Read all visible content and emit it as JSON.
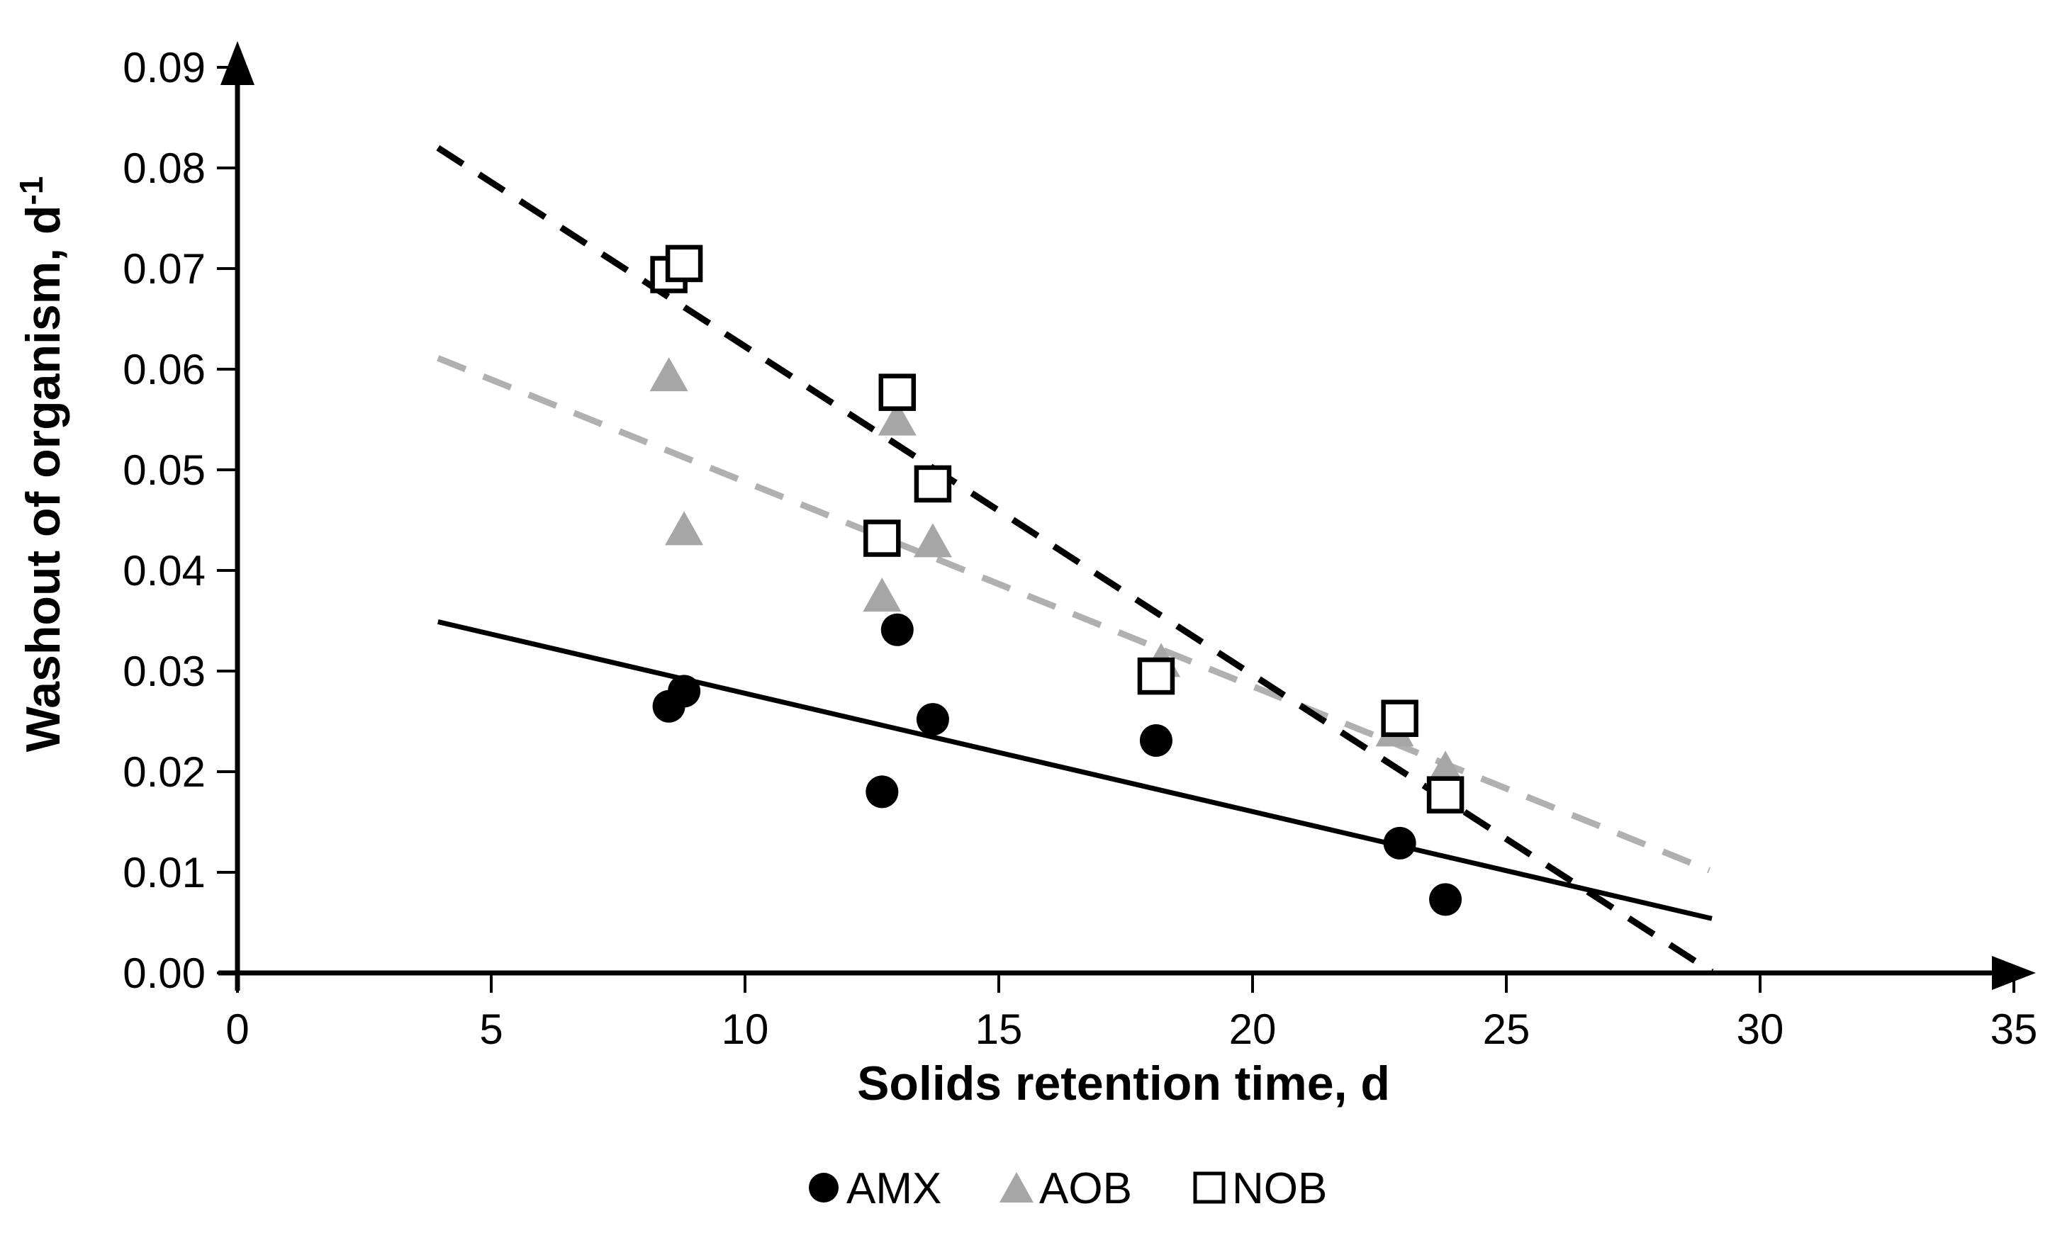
{
  "figure": {
    "background": "#ffffff",
    "axis_color": "#000000"
  },
  "chart_data": {
    "type": "scatter",
    "title": "",
    "xlabel": "Solids retention time, d",
    "ylabel": "Washout of organism, d",
    "ylabel_superscript": "-1",
    "xlim": [
      0,
      35
    ],
    "ylim": [
      0.0,
      0.09
    ],
    "x_ticks": [
      0,
      5,
      10,
      15,
      20,
      25,
      30,
      35
    ],
    "y_tick_labels": [
      "0.00",
      "0.01",
      "0.02",
      "0.03",
      "0.04",
      "0.05",
      "0.06",
      "0.07",
      "0.08",
      "0.09"
    ],
    "grid": false,
    "legend_position": "bottom-center",
    "series": [
      {
        "name": "AMX",
        "marker": "circle",
        "marker_fill": "#000000",
        "marker_stroke": "#000000",
        "points": [
          [
            8.5,
            0.0265
          ],
          [
            8.8,
            0.028
          ],
          [
            12.7,
            0.018
          ],
          [
            13.0,
            0.0341
          ],
          [
            13.7,
            0.0252
          ],
          [
            18.1,
            0.0231
          ],
          [
            22.9,
            0.0129
          ],
          [
            23.8,
            0.0073
          ]
        ],
        "trendline": {
          "style": "solid",
          "color": "#000000",
          "x1": 3.95,
          "y1": 0.0349,
          "x2": 29.05,
          "y2": 0.0054
        }
      },
      {
        "name": "AOB",
        "marker": "triangle",
        "marker_fill": "#a6a6a6",
        "marker_stroke": "#a6a6a6",
        "points": [
          [
            8.5,
            0.0595
          ],
          [
            8.8,
            0.0442
          ],
          [
            12.7,
            0.0376
          ],
          [
            13.0,
            0.0551
          ],
          [
            13.7,
            0.043
          ],
          [
            18.2,
            0.0311
          ],
          [
            22.8,
            0.0242
          ],
          [
            23.8,
            0.0204
          ]
        ],
        "trendline": {
          "style": "dashed",
          "color": "#b0b0b0",
          "x1": 3.95,
          "y1": 0.0611,
          "x2": 29.0,
          "y2": 0.0102
        }
      },
      {
        "name": "NOB",
        "marker": "square",
        "marker_fill": "#ffffff",
        "marker_stroke": "#000000",
        "points": [
          [
            8.5,
            0.0694
          ],
          [
            8.8,
            0.0705
          ],
          [
            12.7,
            0.0432
          ],
          [
            13.0,
            0.0577
          ],
          [
            13.7,
            0.0486
          ],
          [
            18.1,
            0.0295
          ],
          [
            22.9,
            0.0253
          ],
          [
            23.8,
            0.0177
          ]
        ],
        "trendline": {
          "style": "dashed",
          "color": "#000000",
          "x1": 3.95,
          "y1": 0.082,
          "x2": 29.05,
          "y2": 0.0001
        }
      }
    ]
  },
  "legend": {
    "items": [
      {
        "label": "AMX",
        "marker": "circle"
      },
      {
        "label": "AOB",
        "marker": "triangle"
      },
      {
        "label": "NOB",
        "marker": "square"
      }
    ]
  }
}
